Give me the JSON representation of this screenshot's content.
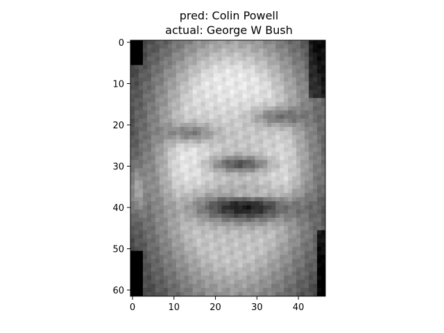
{
  "chart_data": {
    "type": "heatmap",
    "title_line1": "pred: Colin Powell",
    "title_line2": "actual: George W Bush",
    "image_shape": {
      "rows": 62,
      "cols": 47
    },
    "colormap": "gray",
    "xlim": [
      -0.5,
      46.5
    ],
    "ylim": [
      61.5,
      -0.5
    ],
    "xticks": [
      0,
      10,
      20,
      30,
      40
    ],
    "xtick_labels": [
      "0",
      "10",
      "20",
      "30",
      "40"
    ],
    "yticks": [
      0,
      10,
      20,
      30,
      40,
      50,
      60
    ],
    "ytick_labels": [
      "0",
      "10",
      "20",
      "30",
      "40",
      "50",
      "60"
    ],
    "grid": false
  }
}
